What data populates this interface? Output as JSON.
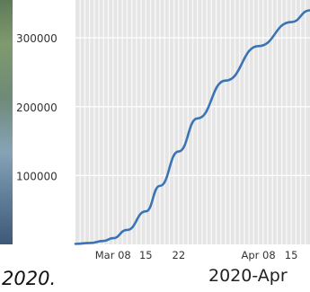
{
  "chart_data": {
    "type": "line",
    "x": [
      "2020-02-29",
      "2020-03-03",
      "2020-03-06",
      "2020-03-08",
      "2020-03-11",
      "2020-03-15",
      "2020-03-18",
      "2020-03-22",
      "2020-03-26",
      "2020-04-01",
      "2020-04-08",
      "2020-04-15",
      "2020-04-19"
    ],
    "series": [
      {
        "values": [
          800,
          2000,
          5000,
          9000,
          21000,
          48000,
          85000,
          135000,
          183000,
          238000,
          288000,
          323000,
          340000
        ],
        "color": "#3b74b5"
      }
    ],
    "x_tick_labels": [
      "Mar 08",
      "15",
      "22",
      "Apr 08",
      "15"
    ],
    "x_tick_dates": [
      "2020-03-08",
      "2020-03-15",
      "2020-03-22",
      "2020-04-08",
      "2020-04-15"
    ],
    "y_ticks": [
      100000,
      200000,
      300000
    ],
    "y_tick_labels": [
      "100000",
      "200000",
      "300000"
    ],
    "xlim": [
      "2020-02-29",
      "2020-04-19"
    ],
    "ylim": [
      0,
      355000
    ],
    "grid": true,
    "background": "#e5e5e5",
    "grid_color": "#ffffff"
  },
  "captions": {
    "left": "2020.",
    "right": "2020-Apr"
  }
}
